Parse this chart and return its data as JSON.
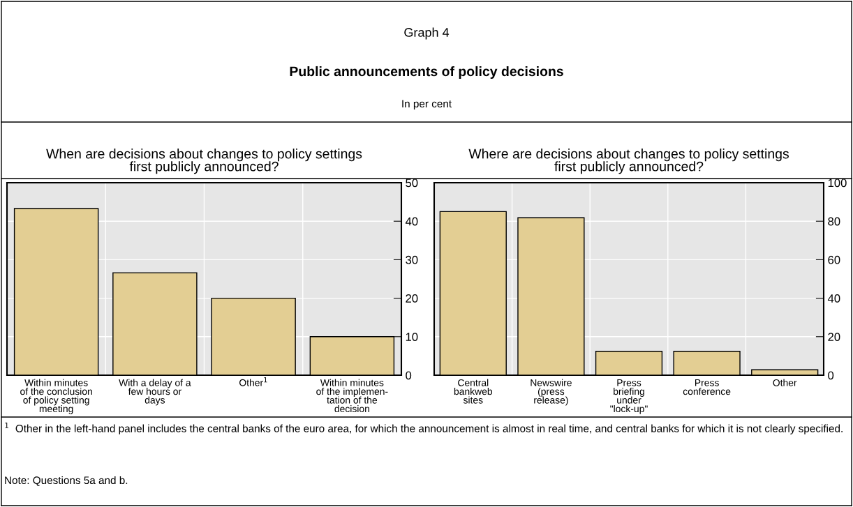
{
  "chart_data": [
    {
      "type": "bar",
      "title": "When are decisions about changes to policy settings\nfirst publicly announced?",
      "categories": [
        "Within minutes\nof the conclusion\nof policy setting\nmeeting",
        "With a delay of a\nfew hours or\ndays",
        "Other$^{1}$",
        "Within minutes\nof the implemen-\ntation of the\ndecision"
      ],
      "values": [
        43.3,
        26.6,
        20,
        10
      ],
      "color": "#e3ce93",
      "ylim": [
        0,
        50
      ],
      "yticks": [
        0,
        10,
        20,
        30,
        40,
        50
      ],
      "grid": true,
      "annotations": [
        "Graph 4",
        "Public announcements of policy decisions",
        "In per cent",
        "$^{1}$  Other in the left-hand panel includes the central banks of the euro area, for which the announcement is almost in real time, and central banks for which it is not clearly specified.",
        "Note: Questions 5a and b."
      ]
    },
    {
      "type": "bar",
      "title": "Where are decisions about changes to policy settings\nfirst publicly announced?",
      "categories": [
        "Central\nbankweb\nsites",
        "Newswire\n(press\nrelease)",
        "Press\nbriefing\nunder\n\"lock-up\"",
        "Press\nconference",
        "Other"
      ],
      "values": [
        85,
        81.8,
        12.4,
        12.4,
        2.8
      ],
      "color": "#e3ce93",
      "ylim": [
        0,
        100
      ],
      "yticks": [
        0,
        20,
        40,
        60,
        80,
        100
      ],
      "grid": true
    }
  ]
}
